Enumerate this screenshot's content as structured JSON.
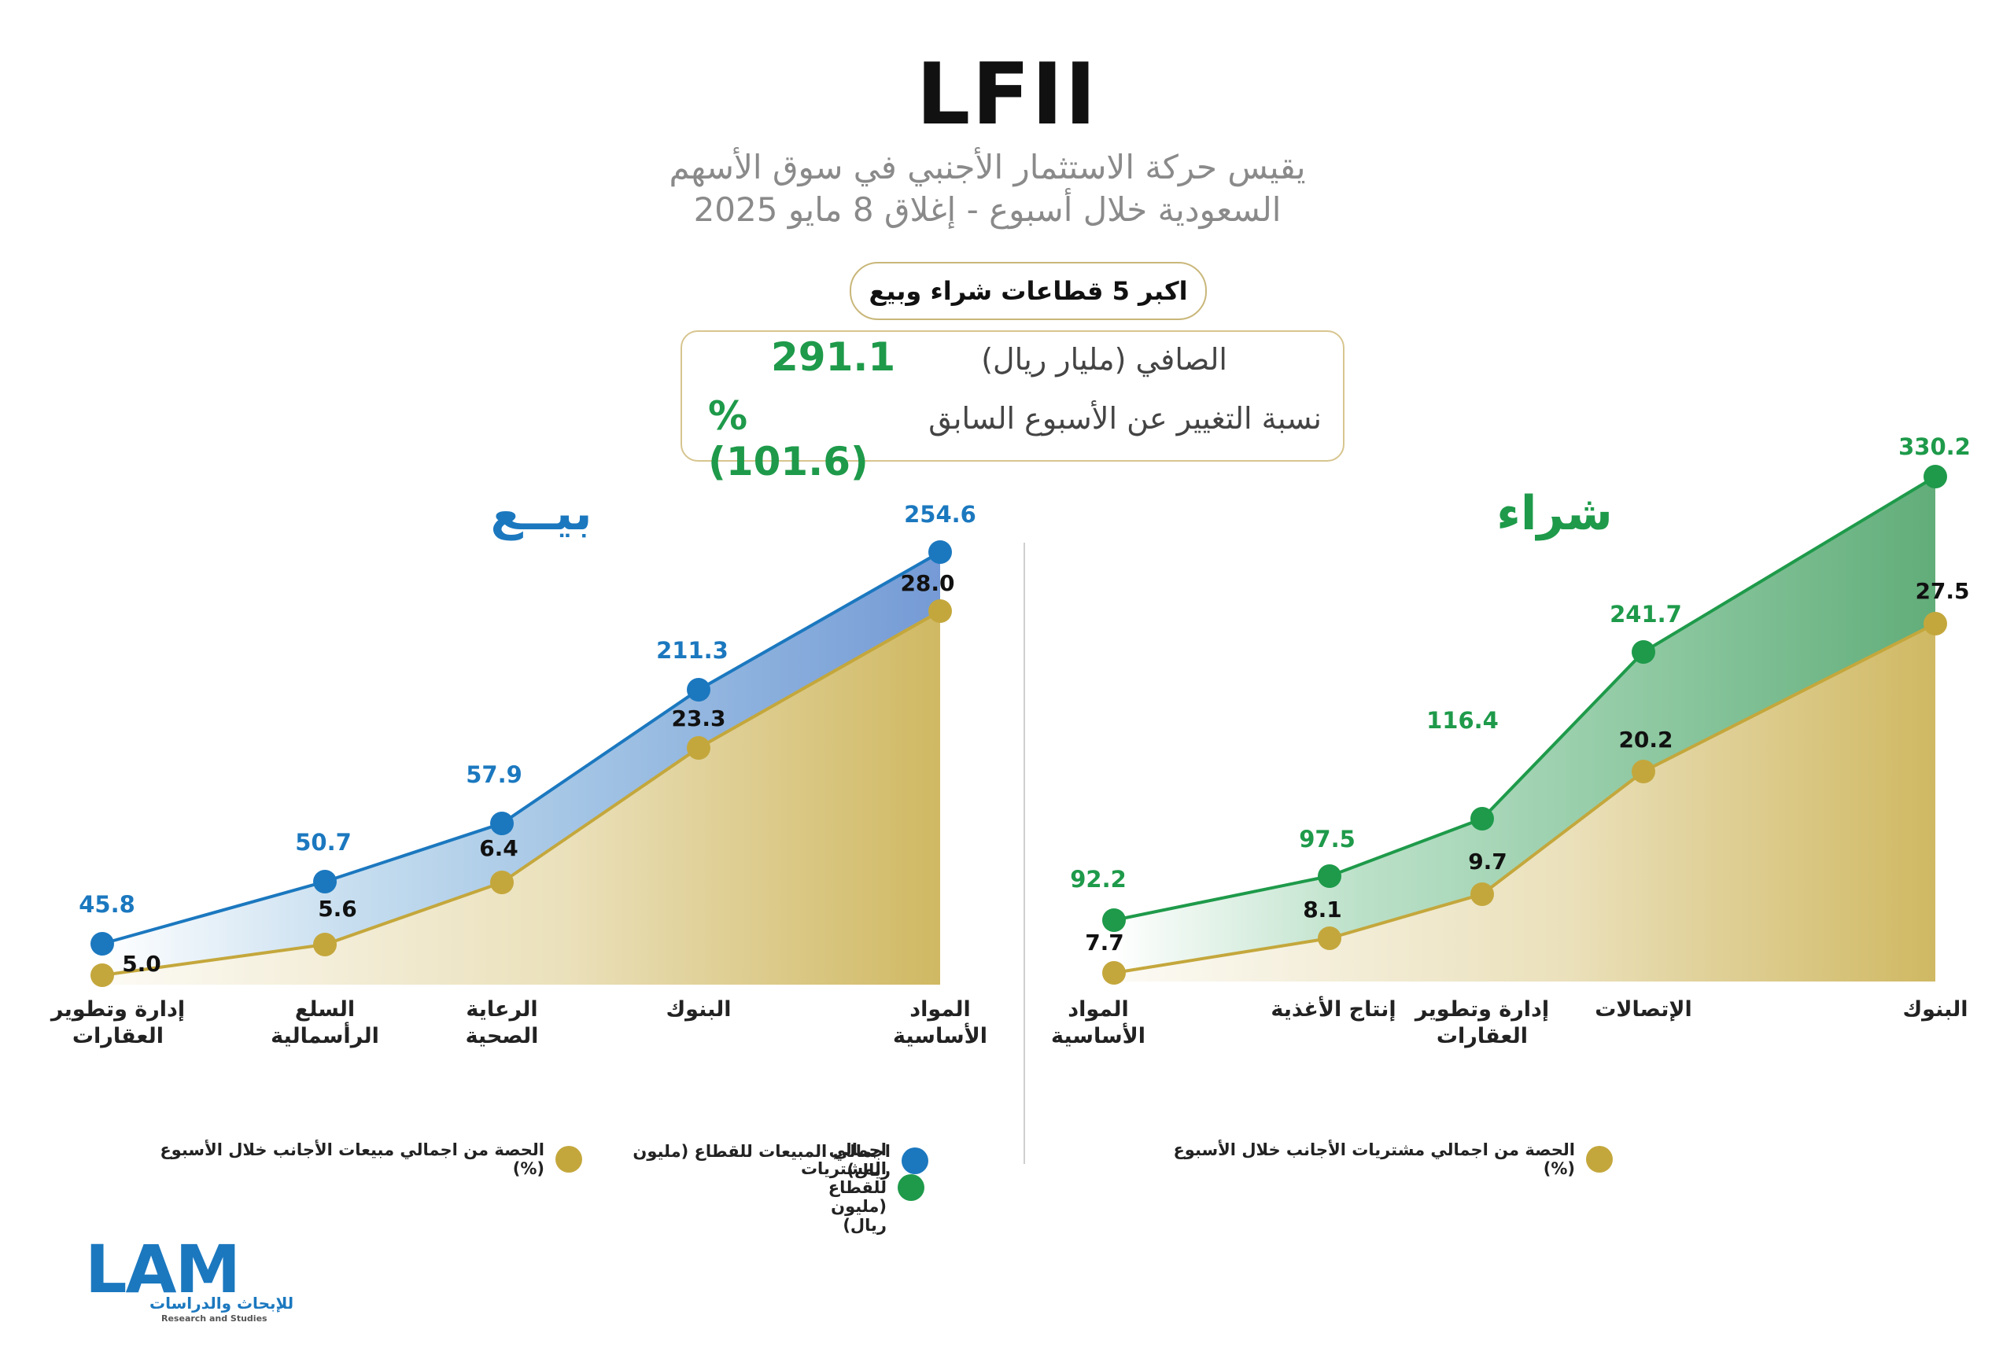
{
  "header": {
    "title": "LFII",
    "subtitle_line1": "يقيس حركة الاستثمار الأجنبي في سوق الأسهم",
    "subtitle_line2": "السعودية خلال أسبوع - إغلاق 8 مايو 2025",
    "pill": "اكبر 5 قطاعات شراء وبيع"
  },
  "summary": {
    "net_label": "الصافي (مليار ريال)",
    "net_value": "291.1",
    "change_label": "نسبة التغيير عن الأسبوع السابق",
    "change_value": "%(101.6)"
  },
  "colors": {
    "buy": "#1e9a4a",
    "sell": "#1b78bf",
    "share": "#c4a73c"
  },
  "chart_data": [
    {
      "type": "area",
      "title": "بيــع",
      "categories": [
        "إدارة وتطوير العقارات",
        "السلع الرأسمالية",
        "الرعاية الصحية",
        "البنوك",
        "المواد الأساسية"
      ],
      "category_lines": [
        [
          "إدارة وتطوير",
          "العقارات"
        ],
        [
          "السلع",
          "الرأسمالية"
        ],
        [
          "الرعاية",
          "الصحية"
        ],
        [
          "البنوك"
        ],
        [
          "المواد",
          "الأساسية"
        ]
      ],
      "series": [
        {
          "name": "اجمالي المبيعات للقطاع (مليون ريال)",
          "values": [
            45.8,
            50.7,
            57.9,
            211.3,
            254.6
          ],
          "labels": [
            "45.8",
            "50.7",
            "57.9",
            "211.3",
            "254.6"
          ],
          "color": "#1b78bf"
        },
        {
          "name": "الحصة من اجمالي مبيعات الأجانب خلال الأسبوع (%)",
          "values": [
            5.0,
            5.6,
            6.4,
            23.3,
            28.0
          ],
          "labels": [
            "5.0",
            "5.6",
            "6.4",
            "23.3",
            "28.0"
          ],
          "color": "#c4a73c"
        }
      ]
    },
    {
      "type": "area",
      "title": "شراء",
      "categories": [
        "المواد الأساسية",
        "إنتاج الأغذية",
        "إدارة وتطوير العقارات",
        "الإتصالات",
        "البنوك"
      ],
      "category_lines": [
        [
          "المواد",
          "الأساسية"
        ],
        [
          "إنتاج الأغذية"
        ],
        [
          "إدارة وتطوير",
          "العقارات"
        ],
        [
          "الإتصالات"
        ],
        [
          "البنوك"
        ]
      ],
      "series": [
        {
          "name": "اجمالي المشتريات للقطاع (مليون ريال)",
          "values": [
            92.2,
            97.5,
            116.4,
            241.7,
            330.2
          ],
          "labels": [
            "92.2",
            "97.5",
            "116.4",
            "241.7",
            "330.2"
          ],
          "color": "#1e9a4a"
        },
        {
          "name": "الحصة من اجمالي مشتريات الأجانب خلال الأسبوع (%)",
          "values": [
            7.7,
            8.1,
            9.7,
            20.2,
            27.5
          ],
          "labels": [
            "7.7",
            "8.1",
            "9.7",
            "20.2",
            "27.5"
          ],
          "color": "#c4a73c"
        }
      ]
    }
  ],
  "logo": {
    "word": "LAM",
    "arabic": "للإبحاث والدراسات",
    "english": "Research and Studies"
  }
}
